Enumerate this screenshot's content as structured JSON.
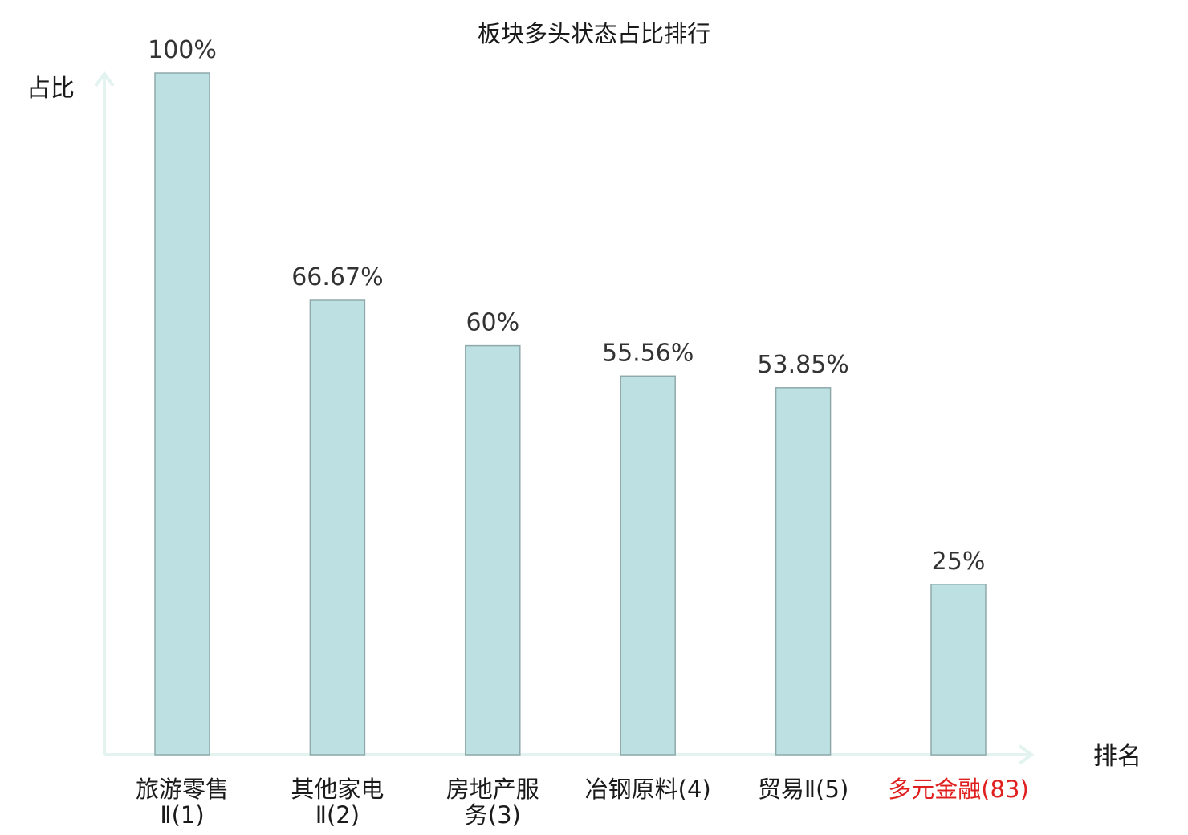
{
  "chart_data": {
    "type": "bar",
    "title": "板块多头状态占比排行",
    "xlabel": "排名",
    "ylabel": "占比",
    "categories": [
      [
        "旅游零售",
        "Ⅱ(1)"
      ],
      [
        "其他家电",
        "Ⅱ(2)"
      ],
      [
        "房地产服",
        "务(3)"
      ],
      [
        "冶钢原料(4)"
      ],
      [
        "贸易Ⅱ(5)"
      ],
      [
        "多元金融(83)"
      ]
    ],
    "values": [
      100,
      66.67,
      60,
      55.56,
      53.85,
      25
    ],
    "value_labels": [
      "100%",
      "66.67%",
      "60%",
      "55.56%",
      "53.85%",
      "25%"
    ],
    "highlight_index": 5,
    "ylim": [
      0,
      100
    ],
    "grid": false,
    "colors": {
      "bar_fill": "#bde0e2",
      "bar_stroke": "#8fa9ab",
      "axis": "#e2f3f0",
      "highlight_text": "#e0201f",
      "text": "#1a1a1a",
      "value_text": "#333333"
    }
  }
}
